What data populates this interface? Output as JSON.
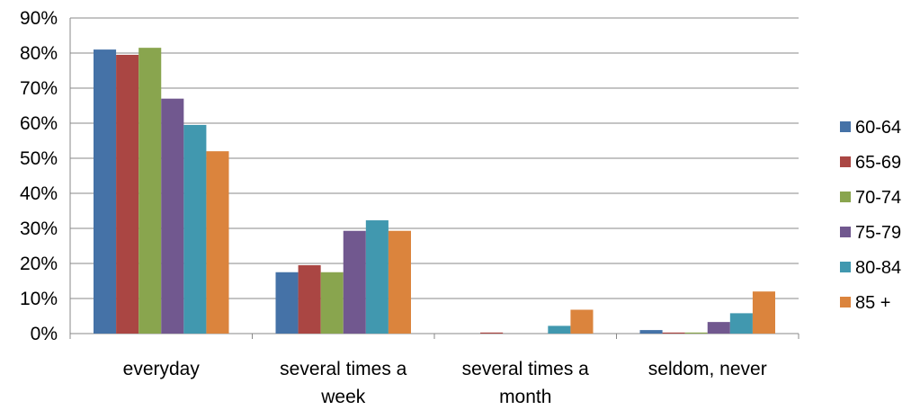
{
  "chart_data": {
    "type": "bar",
    "categories": [
      "everyday",
      "several times a week",
      "several times a month",
      "seldom, never"
    ],
    "category_lines": [
      [
        "everyday"
      ],
      [
        "several times a",
        "week"
      ],
      [
        "several times a",
        "month"
      ],
      [
        "seldom, never"
      ]
    ],
    "series": [
      {
        "name": "60-64",
        "color": "#4572A7",
        "values": [
          81,
          17.5,
          0,
          1
        ]
      },
      {
        "name": "65-69",
        "color": "#AA4643",
        "values": [
          79.5,
          19.5,
          0.3,
          0.3
        ]
      },
      {
        "name": "70-74",
        "color": "#89A54E",
        "values": [
          81.5,
          17.5,
          0,
          0.3
        ]
      },
      {
        "name": "75-79",
        "color": "#71588F",
        "values": [
          67,
          29.3,
          0,
          3.3
        ]
      },
      {
        "name": "80-84",
        "color": "#4198AF",
        "values": [
          59.5,
          32.3,
          2.2,
          5.8
        ]
      },
      {
        "name": "85 +",
        "color": "#DB843D",
        "values": [
          52,
          29.3,
          6.8,
          12
        ]
      }
    ],
    "yticks": [
      "0%",
      "10%",
      "20%",
      "30%",
      "40%",
      "50%",
      "60%",
      "70%",
      "80%",
      "90%"
    ],
    "ylim": [
      0,
      90
    ],
    "grid": true,
    "legend": "right"
  }
}
